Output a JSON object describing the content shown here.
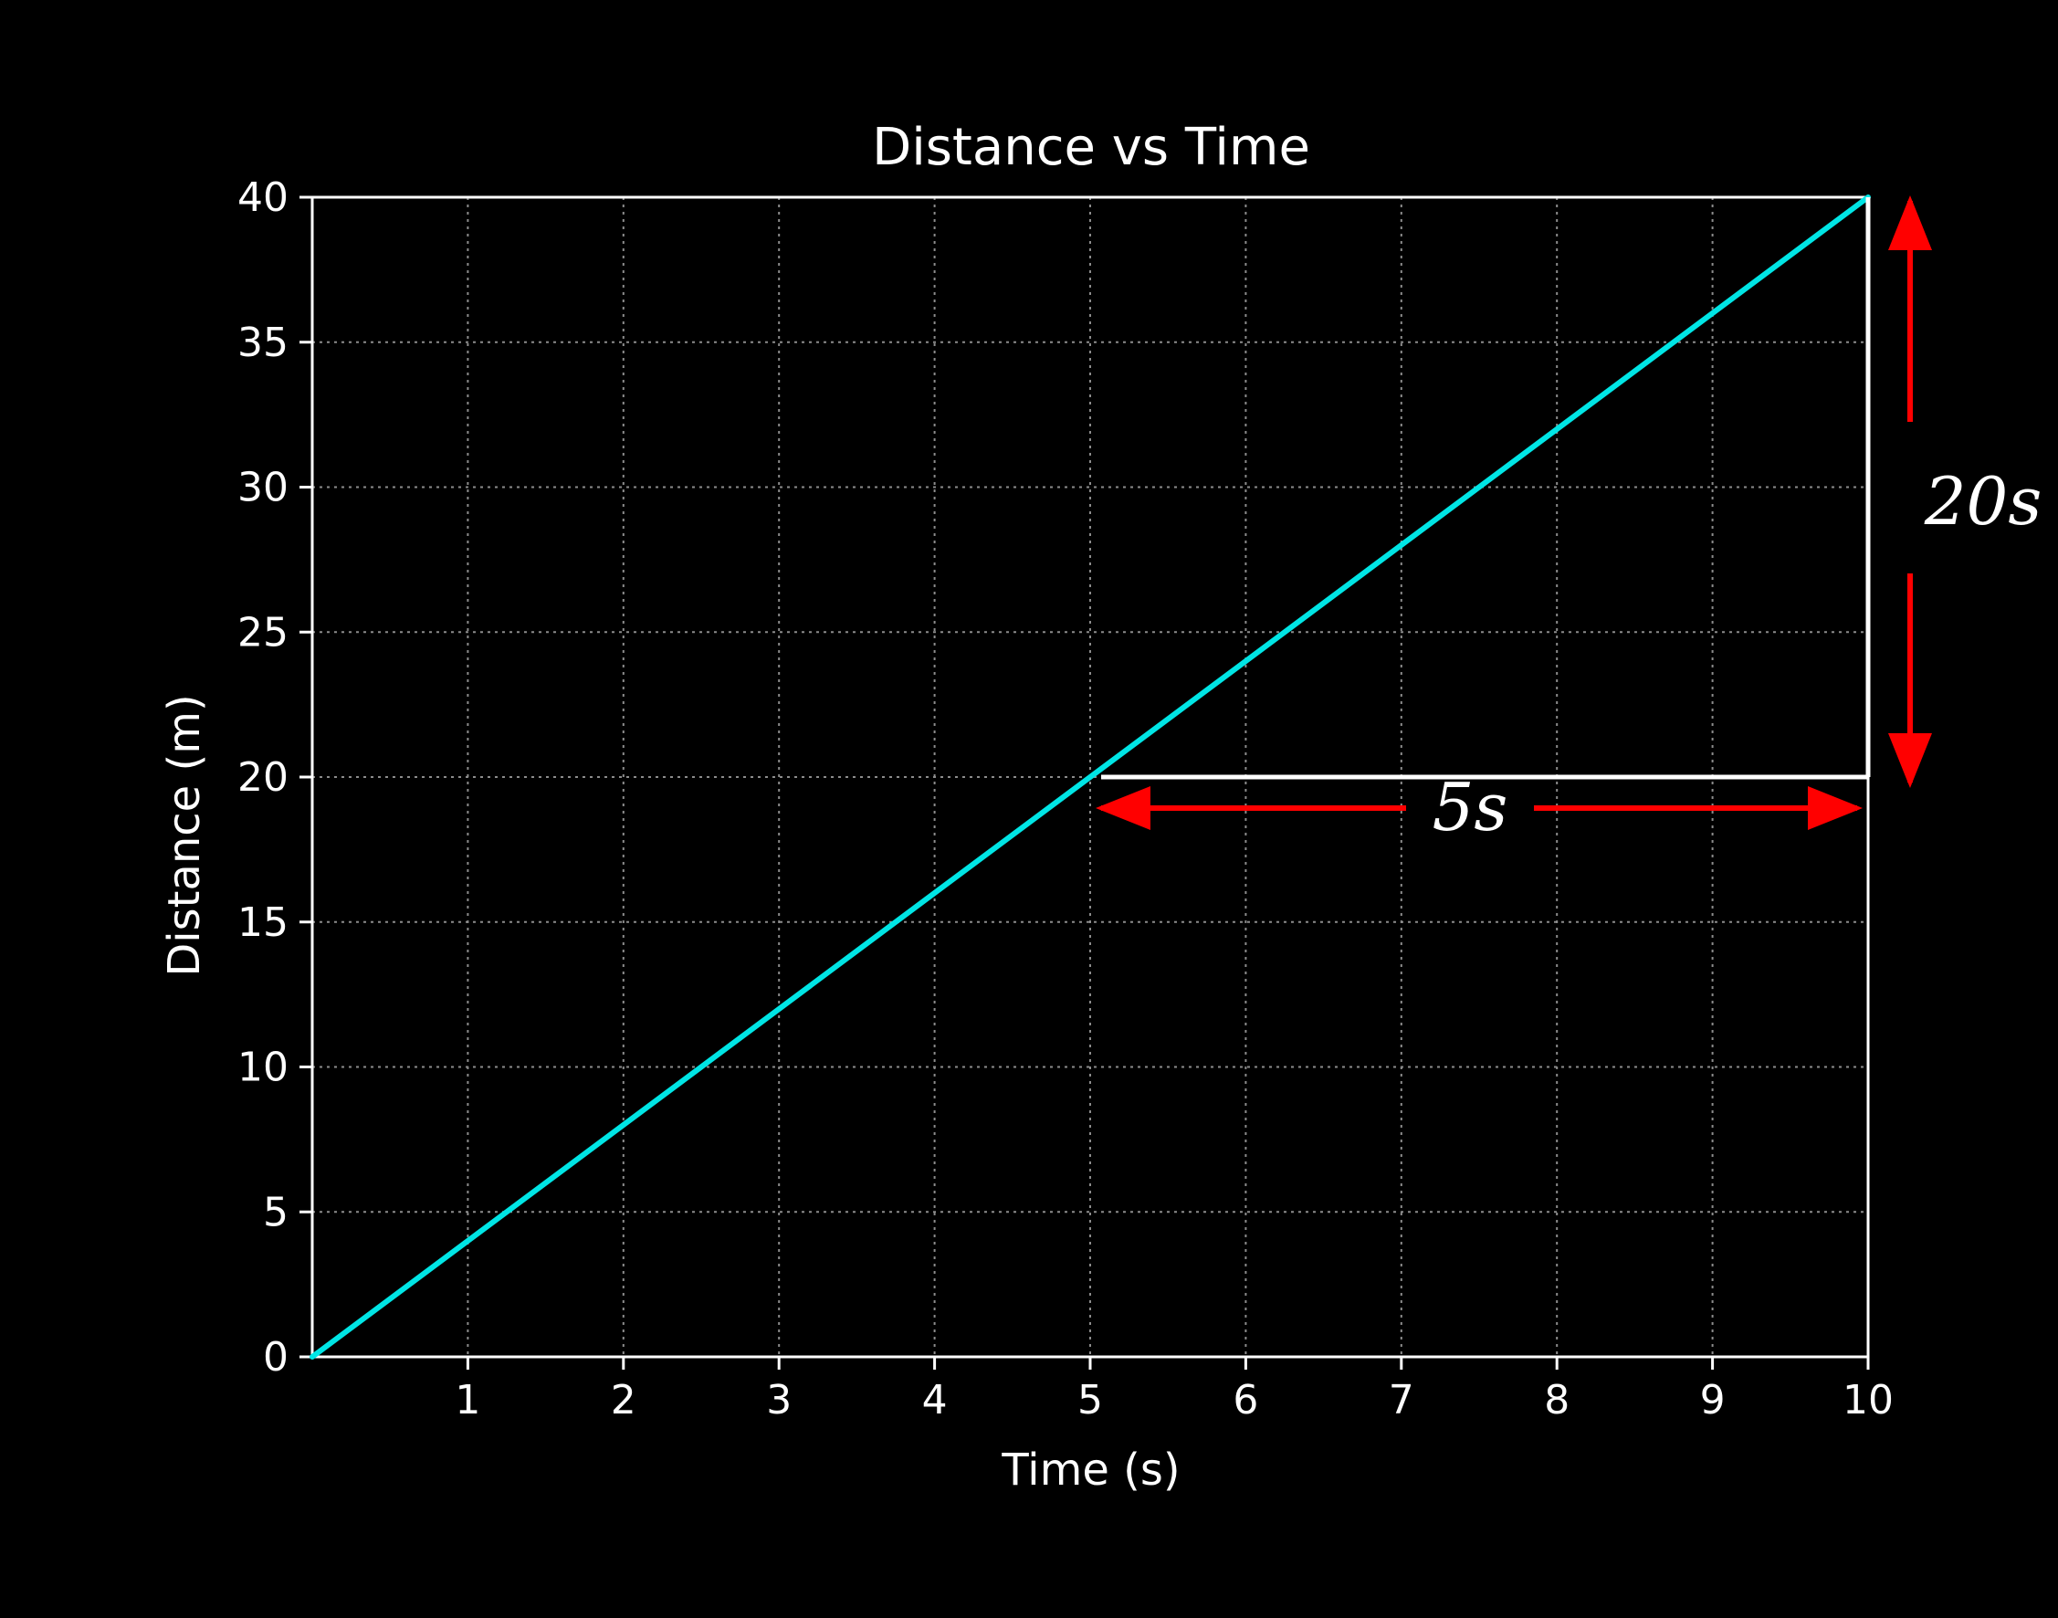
{
  "chart_data": {
    "type": "line",
    "title": "Distance vs Time",
    "xlabel": "Time (s)",
    "ylabel": "Distance (m)",
    "xlim": [
      0,
      10
    ],
    "ylim": [
      0,
      40
    ],
    "xticks": [
      1,
      2,
      3,
      4,
      5,
      6,
      7,
      8,
      9,
      10
    ],
    "yticks": [
      0,
      5,
      10,
      15,
      20,
      25,
      30,
      35,
      40
    ],
    "grid": true,
    "series": [
      {
        "color": "#00e5e5",
        "x": [
          0,
          10
        ],
        "y": [
          0,
          40
        ]
      }
    ],
    "annotations": {
      "slope_triangle": {
        "corner": [
          10,
          20
        ],
        "start": [
          5,
          20
        ],
        "end": [
          10,
          40
        ],
        "color": "#ffffff"
      },
      "run": {
        "text": "5s",
        "from_x": 5,
        "to_x": 10,
        "color": "#ff0000"
      },
      "rise": {
        "text": "20s",
        "from_y": 20,
        "to_y": 40,
        "color": "#ff0000"
      }
    },
    "colors": {
      "background": "#000000",
      "axes": "#ffffff",
      "grid": "#8c8c8c",
      "text": "#ffffff"
    }
  }
}
